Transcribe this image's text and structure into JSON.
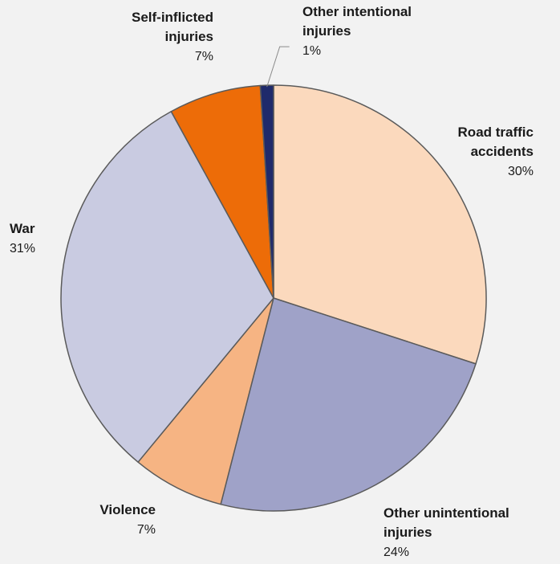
{
  "chart_data": {
    "type": "pie",
    "start_angle_deg": 0,
    "direction": "clockwise",
    "slices": [
      {
        "label_lines": [
          "Road traffic",
          "accidents"
        ],
        "value": 30,
        "value_label": "30%",
        "color": "#fbd9bd"
      },
      {
        "label_lines": [
          "Other unintentional",
          "injuries"
        ],
        "value": 24,
        "value_label": "24%",
        "color": "#9fa2c8"
      },
      {
        "label_lines": [
          "Violence"
        ],
        "value": 7,
        "value_label": "7%",
        "color": "#f6b483"
      },
      {
        "label_lines": [
          "War"
        ],
        "value": 31,
        "value_label": "31%",
        "color": "#c9cbe1"
      },
      {
        "label_lines": [
          "Self-inflicted",
          "injuries"
        ],
        "value": 7,
        "value_label": "7%",
        "color": "#ed6c08"
      },
      {
        "label_lines": [
          "Other intentional",
          "injuries"
        ],
        "value": 1,
        "value_label": "1%",
        "color": "#1f2a6b"
      }
    ],
    "slice_border_color": "#5a5a5a",
    "background_color": "#f2f2f2"
  }
}
